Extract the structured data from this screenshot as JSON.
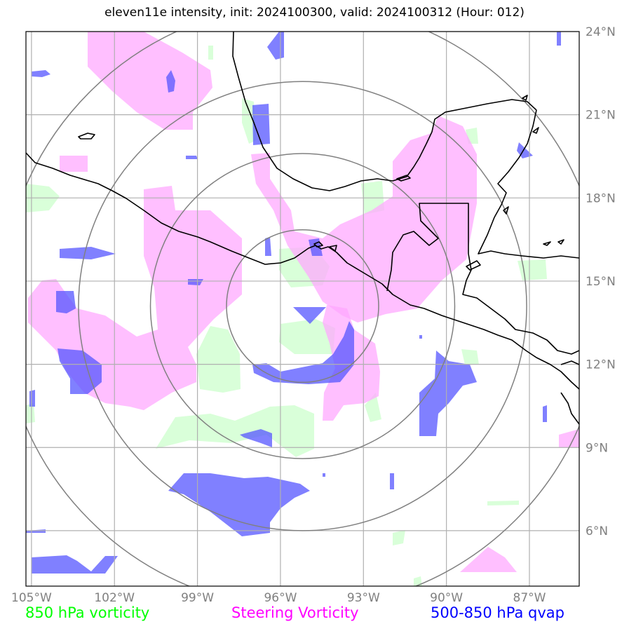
{
  "title": "eleven11e intensity, init: 2024100300, valid: 2024100312 (Hour: 012)",
  "map": {
    "lon_range": [
      -105.2,
      -85.2
    ],
    "lat_range": [
      4.0,
      24.0
    ],
    "lon_ticks": [
      {
        "value": -105,
        "label": "105°W"
      },
      {
        "value": -102,
        "label": "102°W"
      },
      {
        "value": -99,
        "label": "99°W"
      },
      {
        "value": -96,
        "label": "96°W"
      },
      {
        "value": -93,
        "label": "93°W"
      },
      {
        "value": -90,
        "label": "90°W"
      },
      {
        "value": -87,
        "label": "87°W"
      }
    ],
    "lat_ticks": [
      {
        "value": 6,
        "label": "6°N"
      },
      {
        "value": 9,
        "label": "9°N"
      },
      {
        "value": 12,
        "label": "12°N"
      },
      {
        "value": 15,
        "label": "15°N"
      },
      {
        "value": 18,
        "label": "18°N"
      },
      {
        "value": 21,
        "label": "21°N"
      },
      {
        "value": 24,
        "label": "24°N"
      }
    ],
    "center": {
      "lon": -95.2,
      "lat": 14.1
    },
    "range_rings_deg": [
      2.75,
      5.5,
      8.1,
      10.9
    ],
    "colors": {
      "vorticity_850": "#00ff00",
      "steering_vorticity": "#ff00ff",
      "qvap": "#0000ff",
      "grid": "#b0b0b0",
      "rings": "#808080",
      "coast": "#000000"
    }
  },
  "legend": {
    "vort850": {
      "label": "850 hPa vorticity",
      "color": "#00ff00"
    },
    "steering": {
      "label": "Steering Vorticity",
      "color": "#ff00ff"
    },
    "qvap": {
      "label": "500-850 hPa qvap",
      "color": "#0000ff"
    }
  }
}
